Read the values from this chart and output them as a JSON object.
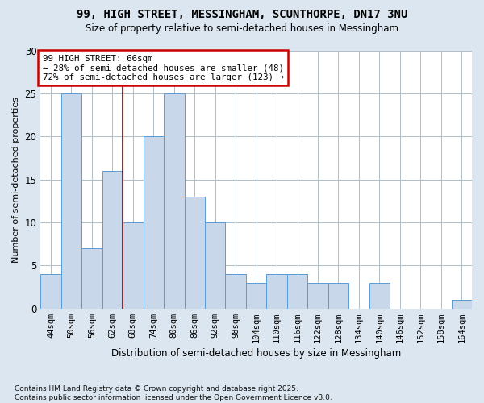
{
  "title_line1": "99, HIGH STREET, MESSINGHAM, SCUNTHORPE, DN17 3NU",
  "title_line2": "Size of property relative to semi-detached houses in Messingham",
  "xlabel": "Distribution of semi-detached houses by size in Messingham",
  "ylabel": "Number of semi-detached properties",
  "footnote": "Contains HM Land Registry data © Crown copyright and database right 2025.\nContains public sector information licensed under the Open Government Licence v3.0.",
  "categories": [
    "44sqm",
    "50sqm",
    "56sqm",
    "62sqm",
    "68sqm",
    "74sqm",
    "80sqm",
    "86sqm",
    "92sqm",
    "98sqm",
    "104sqm",
    "110sqm",
    "116sqm",
    "122sqm",
    "128sqm",
    "134sqm",
    "140sqm",
    "146sqm",
    "152sqm",
    "158sqm",
    "164sqm"
  ],
  "values": [
    4,
    25,
    7,
    16,
    10,
    20,
    25,
    13,
    10,
    4,
    3,
    4,
    4,
    3,
    3,
    0,
    3,
    0,
    0,
    0,
    1
  ],
  "bar_color": "#c8d8ea",
  "bar_edge_color": "#5b9bd5",
  "property_label": "99 HIGH STREET: 66sqm",
  "pct_smaller": 28,
  "pct_larger": 72,
  "n_smaller": 48,
  "n_larger": 123,
  "red_line_color": "#8b0000",
  "ylim_max": 30,
  "yticks": [
    0,
    5,
    10,
    15,
    20,
    25,
    30
  ],
  "background_color": "#dce6f0",
  "plot_bg_color": "#ffffff",
  "grid_color": "#b0bec5",
  "ann_box_bg": "#ffffff",
  "ann_box_edge": "#cc0000"
}
